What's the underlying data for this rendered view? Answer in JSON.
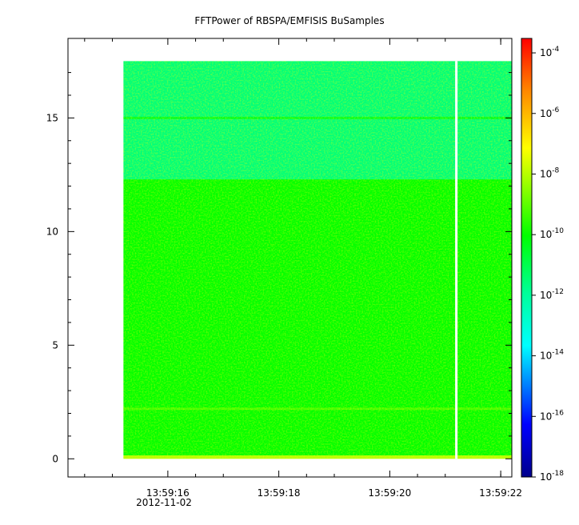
{
  "chart_data": {
    "type": "heatmap",
    "title": "FFTPower of RBSPA/EMFISIS  BuSamples",
    "x_axis": {
      "unit": "time",
      "date_label": "2012-11-02",
      "range": [
        "13:59:14.2",
        "13:59:22.2"
      ],
      "major_ticks": [
        "13:59:16",
        "13:59:18",
        "13:59:20",
        "13:59:22"
      ],
      "minor_ticks": [
        "13:59:14.5",
        "13:59:15",
        "13:59:16.5",
        "13:59:17",
        "13:59:18.5",
        "13:59:19",
        "13:59:20.5",
        "13:59:21",
        "13:59:22"
      ]
    },
    "y_axis": {
      "range": [
        -0.8,
        18.5
      ],
      "ticks": [
        0,
        5,
        10,
        15
      ]
    },
    "colorbar": {
      "scale": "log",
      "range": [
        1e-18,
        0.0003
      ],
      "tick_labels": [
        {
          "base": "10",
          "exp": "-4",
          "value": 0.0001
        },
        {
          "base": "10",
          "exp": "-6",
          "value": 1e-06
        },
        {
          "base": "10",
          "exp": "-8",
          "value": 1e-08
        },
        {
          "base": "10",
          "exp": "-10",
          "value": 1e-10
        },
        {
          "base": "10",
          "exp": "-12",
          "value": 1e-12
        },
        {
          "base": "10",
          "exp": "-14",
          "value": 1e-14
        },
        {
          "base": "10",
          "exp": "-16",
          "value": 1e-16
        },
        {
          "base": "10",
          "exp": "-18",
          "value": 1e-18
        }
      ]
    },
    "data_extent": {
      "x_start": "13:59:15.2",
      "x_end": "13:59:22.2",
      "y_min": 0,
      "y_max": 17.5,
      "gap_at": "13:59:21.2"
    },
    "regions": [
      {
        "y_from": 0,
        "y_to": 0.15,
        "level": 1e-08
      },
      {
        "y_from": 0.15,
        "y_to": 12.3,
        "level": 1e-10
      },
      {
        "y_from": 12.3,
        "y_to": 17.5,
        "level": 3e-12
      }
    ],
    "bands": [
      {
        "y": 2.2,
        "level": 1e-09
      },
      {
        "y": 15.0,
        "level": 1e-10
      }
    ]
  }
}
